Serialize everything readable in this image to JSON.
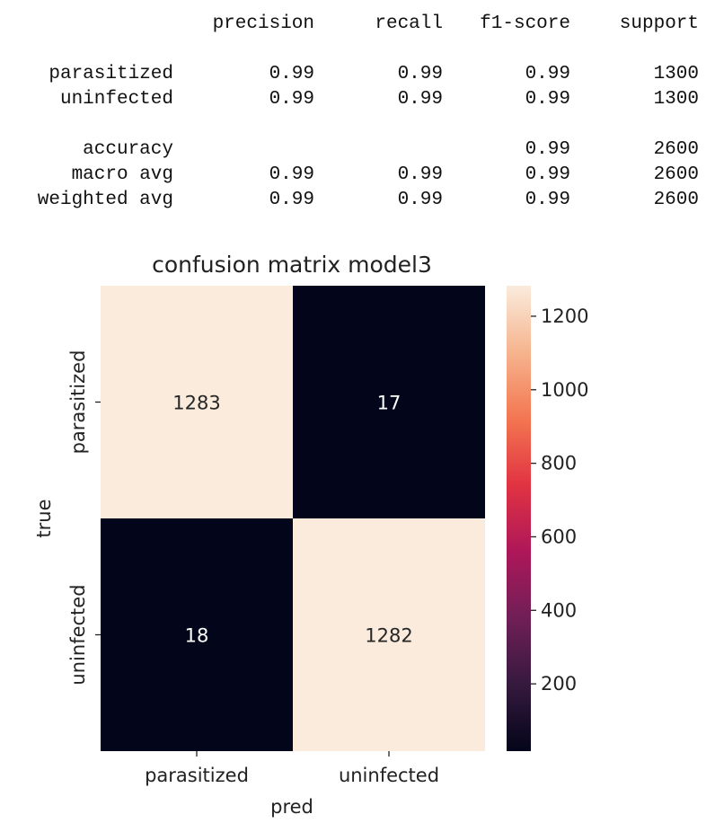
{
  "report": {
    "headers": [
      "precision",
      "recall",
      "f1-score",
      "support"
    ],
    "rows": [
      {
        "label": "parasitized",
        "precision": "0.99",
        "recall": "0.99",
        "f1": "0.99",
        "support": "1300"
      },
      {
        "label": "uninfected",
        "precision": "0.99",
        "recall": "0.99",
        "f1": "0.99",
        "support": "1300"
      },
      {
        "label": "accuracy",
        "precision": "",
        "recall": "",
        "f1": "0.99",
        "support": "2600"
      },
      {
        "label": "macro avg",
        "precision": "0.99",
        "recall": "0.99",
        "f1": "0.99",
        "support": "2600"
      },
      {
        "label": "weighted avg",
        "precision": "0.99",
        "recall": "0.99",
        "f1": "0.99",
        "support": "2600"
      }
    ]
  },
  "chart_data": {
    "type": "heatmap",
    "title": "confusion matrix model3",
    "xlabel": "pred",
    "ylabel": "true",
    "x_categories": [
      "parasitized",
      "uninfected"
    ],
    "y_categories": [
      "parasitized",
      "uninfected"
    ],
    "values": [
      [
        1283,
        17
      ],
      [
        18,
        1282
      ]
    ],
    "colorbar": {
      "min": 17,
      "max": 1283,
      "ticks": [
        200,
        400,
        600,
        800,
        1000,
        1200
      ],
      "colormap": "rocket",
      "stops": [
        "#03051A",
        "#36193E",
        "#701F57",
        "#AE1759",
        "#E13342",
        "#F37651",
        "#F6B48E",
        "#FAEBDD"
      ]
    }
  }
}
